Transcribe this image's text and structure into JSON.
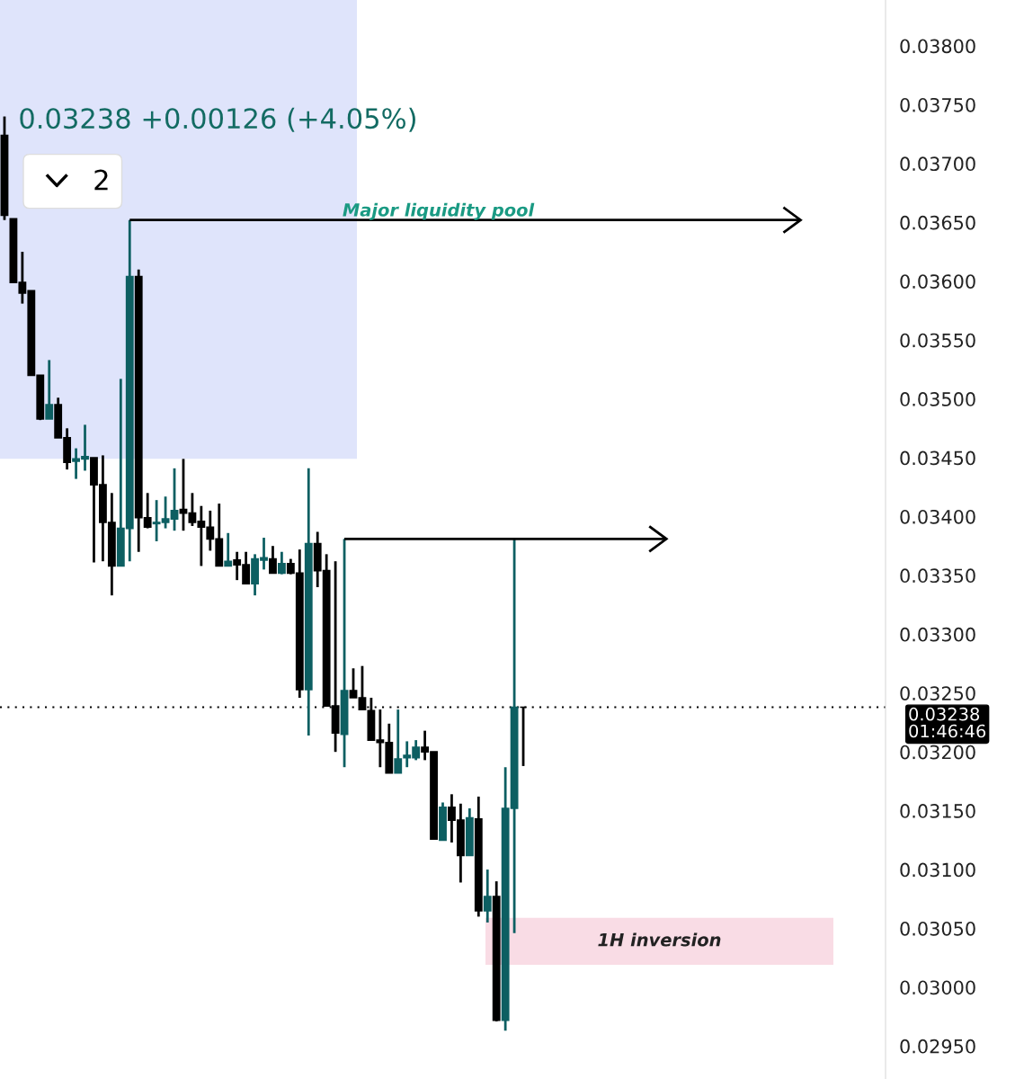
{
  "chart_data": {
    "type": "candlestick",
    "subtitle": "0.03238 +0.00126 (+4.05%)",
    "annotations": [
      "2",
      "1H inversion"
    ],
    "categories": [
      null,
      null,
      null,
      null,
      null,
      null,
      null,
      null,
      null,
      null,
      null,
      null,
      null,
      null,
      null,
      null,
      null,
      null,
      null,
      null,
      null,
      null,
      null,
      null,
      null,
      null,
      null,
      null,
      null,
      null,
      null,
      null,
      null,
      null,
      null,
      null,
      null,
      null,
      null,
      null,
      null,
      null,
      null,
      null,
      null,
      null,
      null,
      null,
      null,
      null,
      null,
      null,
      null,
      null,
      null,
      null,
      null,
      null,
      null,
      null,
      null,
      null,
      null,
      null,
      null,
      null,
      null,
      null,
      null,
      null,
      null,
      null,
      null,
      null,
      null,
      null,
      null,
      null,
      null,
      null,
      null,
      null,
      null,
      null,
      null,
      null,
      null,
      null,
      null,
      null,
      null,
      null,
      null,
      null,
      null,
      null,
      null,
      null,
      null
    ],
    "ohlc": [
      [
        0.03724,
        0.0374,
        0.03652,
        0.03656
      ],
      [
        0.03653,
        0.03653,
        0.03599,
        0.03599
      ],
      [
        0.03599,
        0.03625,
        0.03581,
        0.0359
      ],
      [
        0.03592,
        0.03592,
        0.0352,
        0.0352
      ],
      [
        0.0352,
        0.0352,
        0.03482,
        0.03483
      ],
      [
        0.03483,
        0.03533,
        0.03483,
        0.03495
      ],
      [
        0.03495,
        0.03501,
        0.03467,
        0.03467
      ],
      [
        0.03467,
        0.03475,
        0.0344,
        0.03446
      ],
      [
        0.03447,
        0.03458,
        0.03432,
        0.03449
      ],
      [
        0.03449,
        0.03478,
        0.03439,
        0.03451
      ],
      [
        0.0345,
        0.0345,
        0.03361,
        0.03427
      ],
      [
        0.03427,
        0.03452,
        0.03362,
        0.03395
      ],
      [
        0.03395,
        0.0342,
        0.03333,
        0.03358
      ],
      [
        0.03358,
        0.03517,
        0.03358,
        0.0339
      ],
      [
        0.0339,
        0.03652,
        0.03362,
        0.03604
      ],
      [
        0.03604,
        0.0361,
        0.0337,
        0.03399
      ],
      [
        0.03399,
        0.0342,
        0.0339,
        0.03391
      ],
      [
        0.03394,
        0.03414,
        0.03379,
        0.03395
      ],
      [
        0.03395,
        0.03417,
        0.0339,
        0.03398
      ],
      [
        0.03398,
        0.03441,
        0.03388,
        0.03405
      ],
      [
        0.03406,
        0.03449,
        0.03388,
        0.03403
      ],
      [
        0.03403,
        0.0342,
        0.03392,
        0.03395
      ],
      [
        0.03396,
        0.03409,
        0.03358,
        0.03391
      ],
      [
        0.03391,
        0.03405,
        0.03371,
        0.03381
      ],
      [
        0.03381,
        0.03411,
        0.03358,
        0.03358
      ],
      [
        0.03358,
        0.03386,
        0.03358,
        0.03362
      ],
      [
        0.03363,
        0.0337,
        0.03346,
        0.03359
      ],
      [
        0.03359,
        0.0337,
        0.03343,
        0.03343
      ],
      [
        0.03343,
        0.03368,
        0.03333,
        0.03364
      ],
      [
        0.03363,
        0.03382,
        0.03355,
        0.03365
      ],
      [
        0.03364,
        0.03375,
        0.03352,
        0.03352
      ],
      [
        0.03352,
        0.0337,
        0.03351,
        0.0336
      ],
      [
        0.0336,
        0.03364,
        0.03351,
        0.03352
      ],
      [
        0.03352,
        0.03372,
        0.03246,
        0.03253
      ],
      [
        0.03253,
        0.03441,
        0.03214,
        0.03377
      ],
      [
        0.03377,
        0.03387,
        0.0334,
        0.03354
      ],
      [
        0.03354,
        0.03368,
        0.03239,
        0.03239
      ],
      [
        0.03239,
        0.03362,
        0.032,
        0.03216
      ],
      [
        0.03215,
        0.03381,
        0.03187,
        0.03252
      ],
      [
        0.03252,
        0.03271,
        0.03246,
        0.03246
      ],
      [
        0.03246,
        0.03273,
        0.03236,
        0.03236
      ],
      [
        0.03235,
        0.03246,
        0.0321,
        0.0321
      ],
      [
        0.0321,
        0.03236,
        0.03187,
        0.03208
      ],
      [
        0.03208,
        0.03224,
        0.03182,
        0.03182
      ],
      [
        0.03182,
        0.03236,
        0.03182,
        0.03194
      ],
      [
        0.03195,
        0.03209,
        0.03187,
        0.03197
      ],
      [
        0.03195,
        0.0321,
        0.03193,
        0.03204
      ],
      [
        0.03204,
        0.03218,
        0.03193,
        0.032
      ],
      [
        0.032,
        0.032,
        0.03126,
        0.03126
      ],
      [
        0.03125,
        0.03157,
        0.03125,
        0.03153
      ],
      [
        0.03153,
        0.03164,
        0.03123,
        0.03142
      ],
      [
        0.03142,
        0.03156,
        0.03089,
        0.03112
      ],
      [
        0.03112,
        0.03152,
        0.03112,
        0.03144
      ],
      [
        0.03143,
        0.03162,
        0.0306,
        0.03065
      ],
      [
        0.03065,
        0.031,
        0.03055,
        0.03077
      ],
      [
        0.03077,
        0.0309,
        0.02971,
        0.02972
      ],
      [
        0.02972,
        0.03187,
        0.02963,
        0.03152
      ],
      [
        0.03152,
        0.03381,
        0.03046,
        0.03238
      ],
      [
        0.03238,
        0.03238,
        0.03188,
        0.03238
      ],
      null,
      null,
      null,
      null,
      null,
      null,
      null,
      null,
      null,
      null,
      null,
      null,
      null,
      null,
      null,
      null,
      null,
      null,
      null,
      null,
      null,
      null,
      null,
      null,
      null,
      null,
      null,
      null,
      null,
      null,
      null,
      null,
      null,
      null,
      null,
      null,
      null,
      null,
      null,
      null
    ],
    "ylim": [
      0.02922,
      0.03839
    ],
    "yticks": [
      {
        "value": 0.0295,
        "label": "0.02950"
      },
      {
        "value": 0.03,
        "label": "0.03000"
      },
      {
        "value": 0.0305,
        "label": "0.03050"
      },
      {
        "value": 0.031,
        "label": "0.03100"
      },
      {
        "value": 0.0315,
        "label": "0.03150"
      },
      {
        "value": 0.032,
        "label": "0.03200"
      },
      {
        "value": 0.0325,
        "label": "0.03250"
      },
      {
        "value": 0.033,
        "label": "0.03300"
      },
      {
        "value": 0.0335,
        "label": "0.03350"
      },
      {
        "value": 0.034,
        "label": "0.03400"
      },
      {
        "value": 0.0345,
        "label": "0.03450"
      },
      {
        "value": 0.035,
        "label": "0.03500"
      },
      {
        "value": 0.0355,
        "label": "0.03550"
      },
      {
        "value": 0.036,
        "label": "0.03600"
      },
      {
        "value": 0.0365,
        "label": "0.03650"
      },
      {
        "value": 0.037,
        "label": "0.03700"
      },
      {
        "value": 0.0375,
        "label": "0.03750"
      },
      {
        "value": 0.038,
        "label": "0.03800"
      }
    ],
    "tick_labels": "y",
    "grid": false,
    "ref_lines": [
      {
        "axis": "y",
        "value": 0.03238,
        "label": "0.03238\n01:46:46",
        "color": "#000000",
        "line_style": "dotted"
      },
      {
        "axis": "y",
        "value": 0.03652,
        "label": "Major liquidity pool",
        "color": "#000000",
        "line_style": "solid"
      },
      {
        "axis": "y",
        "value": 0.03381,
        "color": "#000000",
        "line_style": "solid"
      }
    ],
    "bands": [
      {
        "axis": "y",
        "from": 0.03449,
        "to": 0.03839,
        "color": "#dfe4fb"
      },
      {
        "axis": "y",
        "from": 0.03019,
        "to": 0.03059,
        "color": "#f9dce5"
      }
    ]
  }
}
